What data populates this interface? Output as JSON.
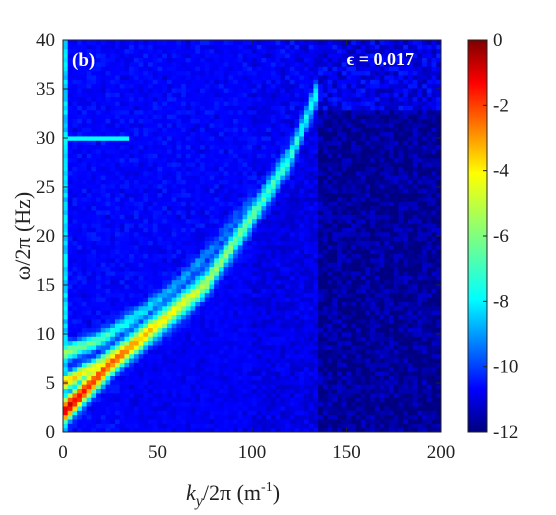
{
  "chart_data": {
    "type": "heatmap",
    "panel_label": "(b)",
    "annotation": "ϵ = 0.017",
    "xlabel_main": "k",
    "xlabel_sub": "y",
    "xlabel_rest": "/2π (m",
    "xlabel_sup": "-1",
    "xlabel_close": ")",
    "ylabel": "ω/2π (Hz)",
    "xlim": [
      0,
      200
    ],
    "ylim": [
      0,
      40
    ],
    "xticks": [
      "0",
      "50",
      "100",
      "150",
      "200"
    ],
    "yticks": [
      "0",
      "5",
      "10",
      "15",
      "20",
      "25",
      "30",
      "35",
      "40"
    ],
    "colorbar": {
      "range": [
        -12,
        0
      ],
      "ticks": [
        "0",
        "-2",
        "-4",
        "-6",
        "-8",
        "-10",
        "-12"
      ],
      "colormap": "jet"
    },
    "ridges": [
      {
        "name": "main-branch",
        "points": [
          [
            0,
            2
          ],
          [
            10,
            4
          ],
          [
            25,
            7
          ],
          [
            50,
            11
          ],
          [
            75,
            15
          ],
          [
            100,
            22
          ],
          [
            120,
            28
          ],
          [
            135,
            35
          ]
        ]
      },
      {
        "name": "second-branch",
        "points": [
          [
            0,
            5
          ],
          [
            20,
            7
          ],
          [
            40,
            10
          ],
          [
            60,
            13
          ],
          [
            80,
            17
          ],
          [
            100,
            23
          ]
        ]
      },
      {
        "name": "third-branch",
        "points": [
          [
            0,
            8
          ],
          [
            20,
            9.5
          ],
          [
            40,
            12
          ],
          [
            60,
            15
          ],
          [
            80,
            19
          ],
          [
            100,
            24
          ]
        ]
      },
      {
        "name": "horizontal-line",
        "points": [
          [
            0,
            30
          ],
          [
            35,
            30
          ]
        ]
      }
    ],
    "background_level": -10.8
  }
}
